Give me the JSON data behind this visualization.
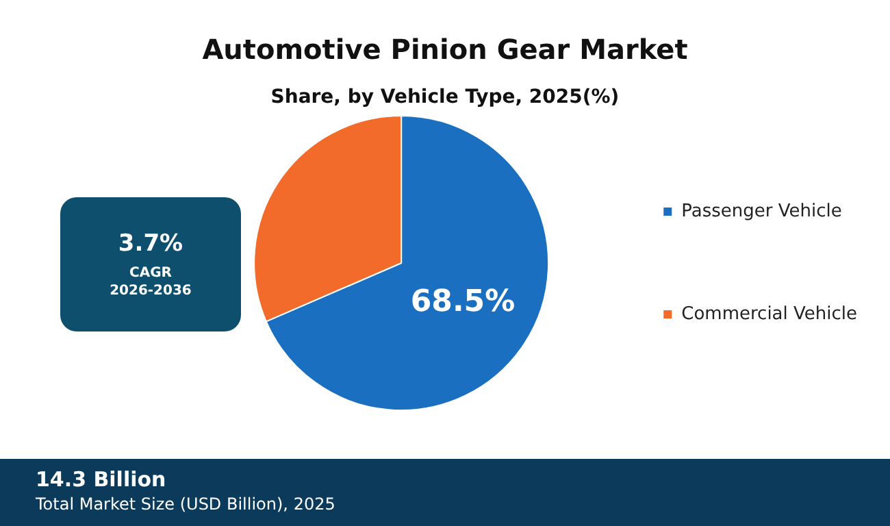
{
  "chart_data": {
    "type": "pie",
    "title": "Automotive Pinion Gear Market",
    "subtitle": "Share, by Vehicle Type, 2025(%)",
    "categories": [
      "Passenger Vehicle",
      "Commercial Vehicle"
    ],
    "values": [
      68.5,
      31.5
    ],
    "colors": [
      "#1a6fc0",
      "#f26b2a"
    ],
    "value_labels": [
      "68.5%",
      null
    ],
    "legend": "right",
    "annotations": [
      "3.7%",
      "CAGR",
      "2026-2036",
      "14.3 Billion",
      "Total Market Size (USD Billion), 2025"
    ]
  }
}
